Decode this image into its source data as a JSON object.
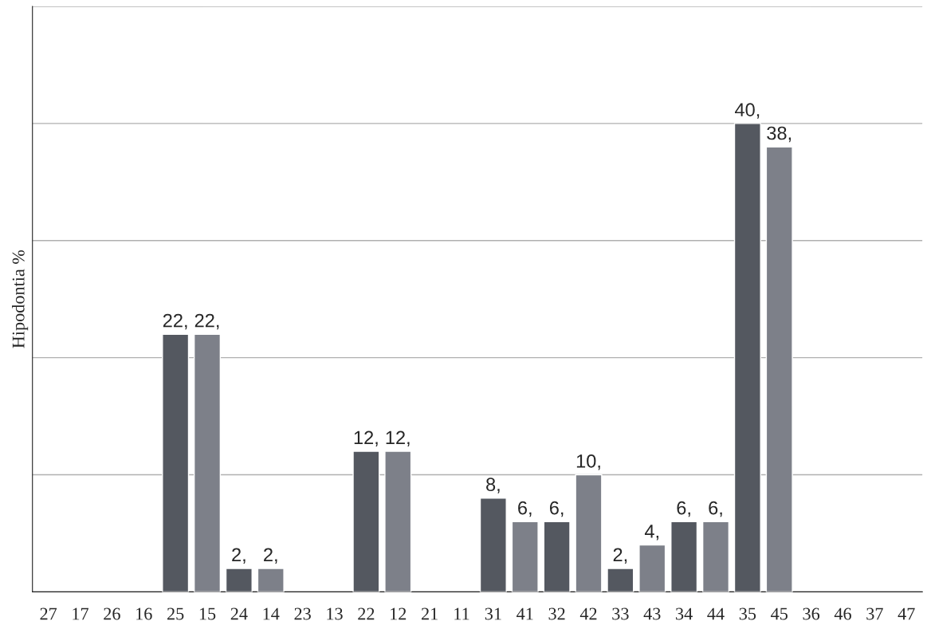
{
  "chart_data": {
    "type": "bar",
    "ylabel": "Hipodontia %",
    "categories": [
      "27",
      "17",
      "26",
      "16",
      "25",
      "15",
      "24",
      "14",
      "23",
      "13",
      "22",
      "12",
      "21",
      "11",
      "31",
      "41",
      "32",
      "42",
      "33",
      "43",
      "34",
      "44",
      "35",
      "45",
      "36",
      "46",
      "37",
      "47"
    ],
    "values": [
      null,
      null,
      null,
      null,
      22,
      22,
      2,
      2,
      null,
      null,
      12,
      12,
      null,
      null,
      8,
      6,
      6,
      10,
      2,
      4,
      6,
      6,
      40,
      38,
      null,
      null,
      null,
      null
    ],
    "value_labels": [
      null,
      null,
      null,
      null,
      "22,",
      "22,",
      "2,",
      "2,",
      null,
      null,
      "12,",
      "12,",
      null,
      null,
      "8,",
      "6,",
      "6,",
      "10,",
      "2,",
      "4,",
      "6,",
      "6,",
      "40,",
      "38,",
      null,
      null,
      null,
      null
    ],
    "colors": [
      "#545860",
      "#7d8089",
      "#545860",
      "#7d8089",
      "#545860",
      "#7d8089",
      "#545860",
      "#7d8089",
      "#545860",
      "#7d8089",
      "#545860",
      "#7d8089",
      "#545860",
      "#7d8089",
      "#545860",
      "#7d8089",
      "#545860",
      "#7d8089",
      "#545860",
      "#7d8089",
      "#545860",
      "#7d8089",
      "#545860",
      "#7d8089",
      "#545860",
      "#7d8089",
      "#545860",
      "#7d8089"
    ],
    "ylim": [
      0,
      50
    ],
    "yticks": [
      {
        "value": 0,
        "label": null
      },
      {
        "value": 10,
        "label": null
      },
      {
        "value": 20,
        "label": null
      },
      {
        "value": 30,
        "label": null
      },
      {
        "value": 40,
        "label": null
      },
      {
        "value": 50,
        "label": null
      }
    ],
    "grid": "y",
    "tick_labels": "x"
  }
}
